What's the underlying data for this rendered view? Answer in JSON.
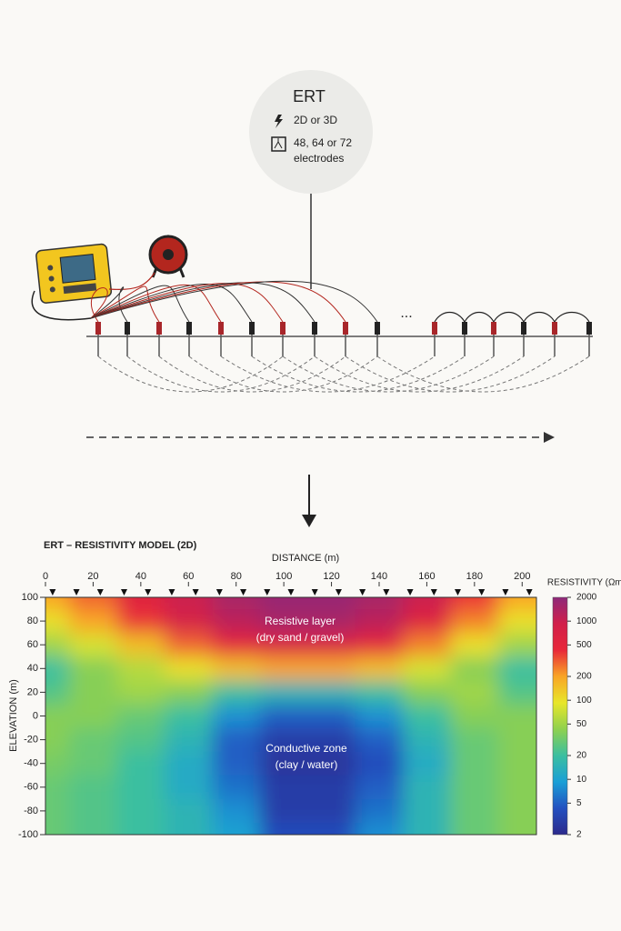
{
  "diagram": {
    "title": "ERT",
    "dimension": "2D or 3D",
    "electrodes_line1": "48, 64 or 72",
    "electrodes_line2": "electrodes",
    "ellipsis": "..."
  },
  "chart_data": {
    "type": "heatmap",
    "title": "ERT – RESISTIVITY MODEL (2D)",
    "x_label": "DISTANCE (m)",
    "y_label": "ELEVATION (m)",
    "xlim": [
      0,
      206
    ],
    "xticks": [
      0,
      20,
      40,
      60,
      80,
      100,
      120,
      140,
      160,
      180,
      200
    ],
    "ylim": [
      -100,
      100
    ],
    "yticks": [
      100,
      80,
      60,
      40,
      20,
      0,
      -20,
      -40,
      -60,
      -80,
      -100
    ],
    "x": [
      0,
      20,
      40,
      60,
      80,
      100,
      120,
      140,
      160,
      180,
      200
    ],
    "y": [
      100,
      80,
      60,
      40,
      20,
      0,
      -20,
      -40,
      -60,
      -80,
      -100
    ],
    "values": [
      [
        200,
        300,
        600,
        1000,
        1500,
        1800,
        1800,
        1500,
        1000,
        400,
        200
      ],
      [
        100,
        200,
        400,
        800,
        1200,
        1500,
        1500,
        1200,
        600,
        250,
        100
      ],
      [
        50,
        80,
        150,
        300,
        500,
        700,
        700,
        500,
        250,
        100,
        50
      ],
      [
        20,
        40,
        60,
        100,
        150,
        200,
        200,
        150,
        80,
        40,
        20
      ],
      [
        25,
        40,
        50,
        40,
        20,
        15,
        15,
        20,
        40,
        50,
        25
      ],
      [
        40,
        40,
        30,
        20,
        8,
        5,
        5,
        8,
        20,
        40,
        40
      ],
      [
        40,
        30,
        25,
        15,
        5,
        3,
        3,
        5,
        15,
        30,
        40
      ],
      [
        35,
        30,
        20,
        12,
        5,
        2.5,
        2.5,
        4,
        12,
        30,
        40
      ],
      [
        30,
        25,
        20,
        12,
        6,
        3,
        3,
        5,
        15,
        30,
        40
      ],
      [
        30,
        25,
        20,
        15,
        8,
        3,
        3,
        6,
        15,
        30,
        40
      ],
      [
        30,
        25,
        20,
        15,
        10,
        4,
        4,
        8,
        15,
        30,
        40
      ]
    ],
    "electrodes_x": [
      3,
      13,
      23,
      33,
      43,
      53,
      63,
      73,
      83,
      93,
      103,
      113,
      123,
      133,
      143,
      153,
      163,
      173,
      183,
      193,
      203
    ],
    "colorbar": {
      "label": "RESISTIVITY (Ωm)",
      "log": true,
      "lim": [
        2,
        2000
      ],
      "ticks": [
        2000,
        1000,
        500,
        200,
        100,
        50,
        20,
        10,
        5,
        2
      ],
      "colors": [
        "#2c2a8c",
        "#2350c0",
        "#1a9fd6",
        "#3bbfa0",
        "#8fd14f",
        "#e8e62a",
        "#f9a526",
        "#e8283a",
        "#d11f4a",
        "#8e2a7a"
      ]
    },
    "annotations": [
      {
        "text": "Resistive layer"
      },
      {
        "text": "(dry sand / gravel)"
      },
      {
        "text": "Conductive zone"
      },
      {
        "text": "(clay / water)"
      }
    ]
  }
}
